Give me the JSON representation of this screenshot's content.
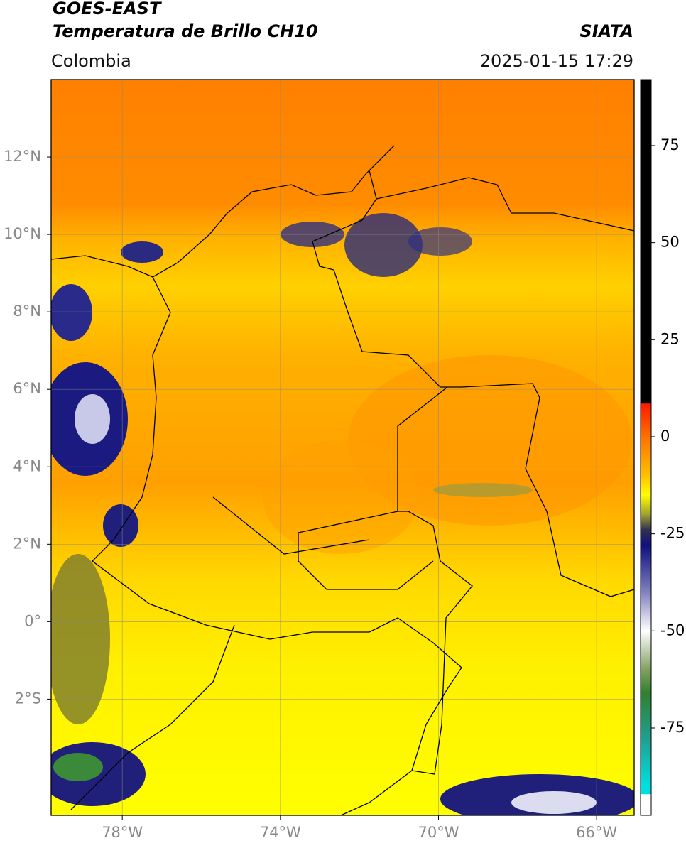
{
  "header": {
    "title_line1": "GOES-EAST",
    "title_line2": "Temperatura de Brillo CH10",
    "region": "Colombia",
    "source": "SIATA",
    "datetime": "2025-01-15 17:29"
  },
  "map": {
    "xlim": [
      -79.8,
      -65.05
    ],
    "ylim": [
      -5,
      14
    ],
    "xticks": [
      {
        "value": -78,
        "label": "78°W"
      },
      {
        "value": -74,
        "label": "74°W"
      },
      {
        "value": -70,
        "label": "70°W"
      },
      {
        "value": -66,
        "label": "66°W"
      }
    ],
    "yticks": [
      {
        "value": 12,
        "label": "12°N"
      },
      {
        "value": 10,
        "label": "10°N"
      },
      {
        "value": 8,
        "label": "8°N"
      },
      {
        "value": 6,
        "label": "6°N"
      },
      {
        "value": 4,
        "label": "4°N"
      },
      {
        "value": 2,
        "label": "2°N"
      },
      {
        "value": 0,
        "label": "0°"
      },
      {
        "value": -2,
        "label": "2°S"
      }
    ],
    "grid": true
  },
  "colorbar": {
    "lim": [
      -97.5,
      92
    ],
    "ticks": [
      75,
      50,
      25,
      0,
      -25,
      -50,
      -75
    ],
    "stops": [
      {
        "value": 92,
        "color": "#000000"
      },
      {
        "value": 8.6,
        "color": "#000000"
      },
      {
        "value": 8.5,
        "color": "#ff1a00"
      },
      {
        "value": 0,
        "color": "#ff7000"
      },
      {
        "value": -10,
        "color": "#ffc000"
      },
      {
        "value": -15,
        "color": "#ffff00"
      },
      {
        "value": -20,
        "color": "#a0a030"
      },
      {
        "value": -24,
        "color": "#303050"
      },
      {
        "value": -28,
        "color": "#101080"
      },
      {
        "value": -40,
        "color": "#8080c0"
      },
      {
        "value": -50,
        "color": "#ffffff"
      },
      {
        "value": -60,
        "color": "#80a060"
      },
      {
        "value": -66,
        "color": "#308030"
      },
      {
        "value": -78,
        "color": "#20a090"
      },
      {
        "value": -90,
        "color": "#00e0e0"
      },
      {
        "value": -92,
        "color": "#00e0e0"
      },
      {
        "value": -92.1,
        "color": "#ffffff"
      },
      {
        "value": -97.5,
        "color": "#ffffff"
      }
    ]
  }
}
